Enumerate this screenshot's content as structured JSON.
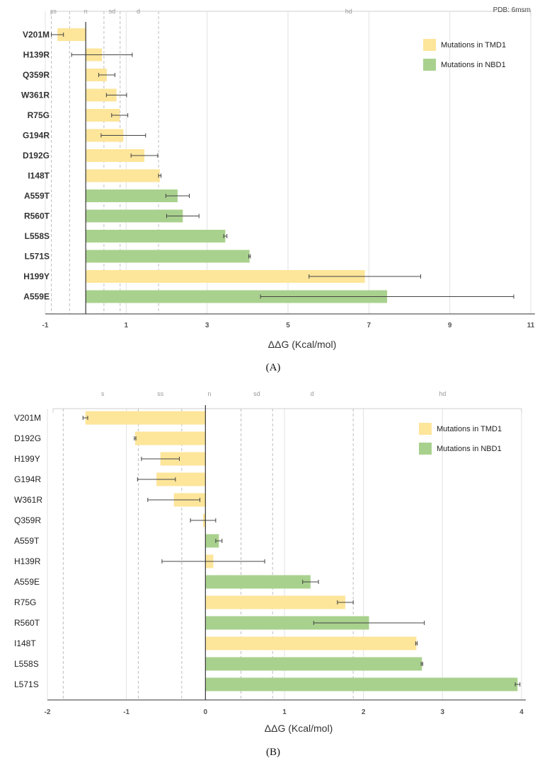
{
  "chart_data": [
    {
      "type": "bar",
      "orientation": "horizontal",
      "panel": "(A)",
      "annotation": "PDB: 6msm",
      "xlabel": "ΔΔG (Kcal/mol)",
      "xlim": [
        -1,
        11
      ],
      "xticks": [
        -1,
        1,
        3,
        5,
        7,
        9,
        11
      ],
      "categories_top": [
        {
          "label": "ss",
          "x": -0.8
        },
        {
          "label": "n",
          "x": 0
        },
        {
          "label": "sd",
          "x": 0.65
        },
        {
          "label": "d",
          "x": 1.3
        },
        {
          "label": "hd",
          "x": 6.5
        }
      ],
      "boundaries": [
        -0.85,
        -0.4,
        0.45,
        0.85,
        1.8
      ],
      "bars": [
        {
          "label": "V201M",
          "value": -0.7,
          "err": 0.15,
          "group": "TMD1"
        },
        {
          "label": "H139R",
          "value": 0.4,
          "err": 0.75,
          "group": "TMD1"
        },
        {
          "label": "Q359R",
          "value": 0.52,
          "err": 0.2,
          "group": "TMD1"
        },
        {
          "label": "W361R",
          "value": 0.76,
          "err": 0.25,
          "group": "TMD1"
        },
        {
          "label": "R75G",
          "value": 0.84,
          "err": 0.2,
          "group": "TMD1"
        },
        {
          "label": "G194R",
          "value": 0.93,
          "err": 0.55,
          "group": "TMD1"
        },
        {
          "label": "D192G",
          "value": 1.45,
          "err": 0.33,
          "group": "TMD1"
        },
        {
          "label": "I148T",
          "value": 1.83,
          "err": 0.03,
          "group": "TMD1"
        },
        {
          "label": "A559T",
          "value": 2.27,
          "err": 0.29,
          "group": "NBD1"
        },
        {
          "label": "R560T",
          "value": 2.4,
          "err": 0.4,
          "group": "NBD1"
        },
        {
          "label": "L558S",
          "value": 3.45,
          "err": 0.04,
          "group": "NBD1"
        },
        {
          "label": "L571S",
          "value": 4.05,
          "err": 0.02,
          "group": "NBD1"
        },
        {
          "label": "H199Y",
          "value": 6.9,
          "err": 1.38,
          "group": "TMD1"
        },
        {
          "label": "A559E",
          "value": 7.45,
          "err": 3.13,
          "group": "NBD1"
        }
      ],
      "legend": [
        {
          "label": "Mutations in TMD1",
          "color": "#fde59a"
        },
        {
          "label": "Mutations in NBD1",
          "color": "#a9d18e"
        }
      ]
    },
    {
      "type": "bar",
      "orientation": "horizontal",
      "panel": "(B)",
      "xlabel": "ΔΔG (Kcal/mol)",
      "xlim": [
        -2,
        4
      ],
      "xticks": [
        -2,
        -1,
        0,
        1,
        2,
        3,
        4
      ],
      "categories_top": [
        {
          "label": "s",
          "x": -1.3
        },
        {
          "label": "ss",
          "x": -0.57
        },
        {
          "label": "n",
          "x": 0.05
        },
        {
          "label": "sd",
          "x": 0.65
        },
        {
          "label": "d",
          "x": 1.35
        },
        {
          "label": "hd",
          "x": 3.0
        }
      ],
      "boundaries": [
        -1.8,
        -0.85,
        -0.3,
        0.45,
        0.85,
        1.87
      ],
      "bars": [
        {
          "label": "V201M",
          "value": -1.52,
          "err": 0.03,
          "group": "TMD1"
        },
        {
          "label": "D192G",
          "value": -0.89,
          "err": 0.01,
          "group": "TMD1"
        },
        {
          "label": "H199Y",
          "value": -0.57,
          "err": 0.24,
          "group": "TMD1"
        },
        {
          "label": "G194R",
          "value": -0.62,
          "err": 0.24,
          "group": "TMD1"
        },
        {
          "label": "W361R",
          "value": -0.4,
          "err": 0.33,
          "group": "TMD1"
        },
        {
          "label": "Q359R",
          "value": -0.03,
          "err": 0.16,
          "group": "TMD1"
        },
        {
          "label": "A559T",
          "value": 0.17,
          "err": 0.04,
          "group": "NBD1"
        },
        {
          "label": "H139R",
          "value": 0.1,
          "err": 0.65,
          "group": "TMD1"
        },
        {
          "label": "A559E",
          "value": 1.33,
          "err": 0.1,
          "group": "NBD1"
        },
        {
          "label": "R75G",
          "value": 1.77,
          "err": 0.1,
          "group": "TMD1"
        },
        {
          "label": "R560T",
          "value": 2.07,
          "err": 0.7,
          "group": "NBD1"
        },
        {
          "label": "I148T",
          "value": 2.67,
          "err": 0.01,
          "group": "TMD1"
        },
        {
          "label": "L558S",
          "value": 2.74,
          "err": 0.01,
          "group": "NBD1"
        },
        {
          "label": "L571S",
          "value": 3.95,
          "err": 0.03,
          "group": "NBD1"
        }
      ],
      "legend": [
        {
          "label": "Mutations in TMD1",
          "color": "#fde59a"
        },
        {
          "label": "Mutations in NBD1",
          "color": "#a9d18e"
        }
      ]
    }
  ],
  "colors": {
    "TMD1": "#fde59a",
    "NBD1": "#a9d18e",
    "grid": "#e2e2e2",
    "boundary": "#bdbdbd",
    "axis": "#333333",
    "error": "#444444"
  }
}
